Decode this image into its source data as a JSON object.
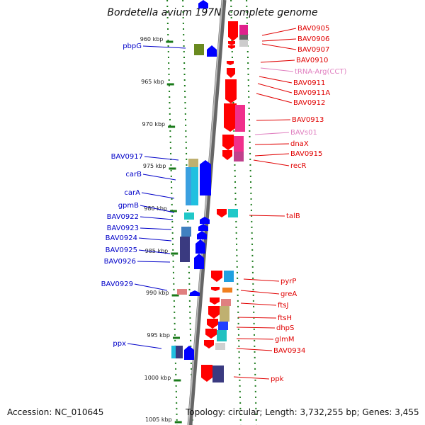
{
  "title": "Bordetella avium 197N, complete genome",
  "accession": "Accession: NC_010645",
  "summary": "Topology: circular; Length: 3,732,255 bp; Genes: 3,455",
  "colors": {
    "forward_gene": "#0000ff",
    "reverse_gene": "#ff0000",
    "forward_label": "#0000c8",
    "reverse_label": "#e00000",
    "trna_label": "#e080c0",
    "backbone": "#8c8c8c",
    "tick": "#1a7a1a"
  },
  "scale_ticks": [
    {
      "label": "960 kbp"
    },
    {
      "label": "965 kbp"
    },
    {
      "label": "970 kbp"
    },
    {
      "label": "975 kbp"
    },
    {
      "label": "980 kbp"
    },
    {
      "label": "985 kbp"
    },
    {
      "label": "990 kbp"
    },
    {
      "label": "995 kbp"
    },
    {
      "label": "1000 kbp"
    },
    {
      "label": "1005 kbp"
    }
  ],
  "left_labels": [
    {
      "text": "pbpG"
    },
    {
      "text": "BAV0917"
    },
    {
      "text": "carB"
    },
    {
      "text": "carA"
    },
    {
      "text": "gpmB"
    },
    {
      "text": "BAV0922"
    },
    {
      "text": "BAV0923"
    },
    {
      "text": "BAV0924"
    },
    {
      "text": "BAV0925"
    },
    {
      "text": "BAV0926"
    },
    {
      "text": "BAV0929"
    },
    {
      "text": "ppx"
    }
  ],
  "right_labels": [
    {
      "text": "BAV0905"
    },
    {
      "text": "BAV0906"
    },
    {
      "text": "BAV0907"
    },
    {
      "text": "BAV0910"
    },
    {
      "text": "tRNA-Arg(CCT)"
    },
    {
      "text": "BAV0911"
    },
    {
      "text": "BAV0911A"
    },
    {
      "text": "BAV0912"
    },
    {
      "text": "BAV0913"
    },
    {
      "text": "BAVs01"
    },
    {
      "text": "dnaX"
    },
    {
      "text": "BAV0915"
    },
    {
      "text": "recR"
    },
    {
      "text": "talB"
    },
    {
      "text": "pyrP"
    },
    {
      "text": "greA"
    },
    {
      "text": "ftsJ"
    },
    {
      "text": "ftsH"
    },
    {
      "text": "dhpS"
    },
    {
      "text": "glmM"
    },
    {
      "text": "BAV0934"
    },
    {
      "text": "ppk"
    }
  ]
}
